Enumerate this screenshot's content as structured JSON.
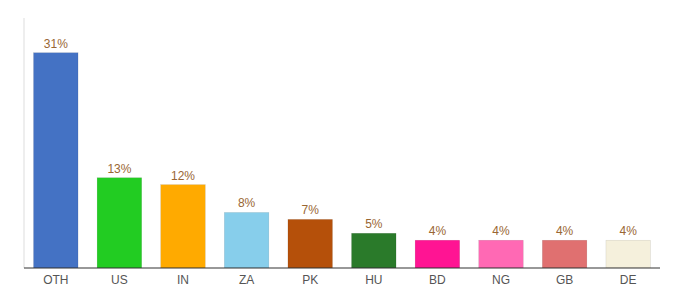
{
  "chart_data": {
    "type": "bar",
    "categories": [
      "OTH",
      "US",
      "IN",
      "ZA",
      "PK",
      "HU",
      "BD",
      "NG",
      "GB",
      "DE"
    ],
    "values": [
      31,
      13,
      12,
      8,
      7,
      5,
      4,
      4,
      4,
      4
    ],
    "value_labels": [
      "31%",
      "13%",
      "12%",
      "8%",
      "7%",
      "5%",
      "4%",
      "4%",
      "4%",
      "4%"
    ],
    "colors": [
      "#4472c4",
      "#22cc22",
      "#ffaa00",
      "#87ceeb",
      "#b5500a",
      "#2a7a2a",
      "#ff1493",
      "#ff69b4",
      "#e07070",
      "#f5f0dc"
    ],
    "ylim": [
      0,
      36
    ],
    "data_labels": true,
    "tick_labels": "x"
  }
}
